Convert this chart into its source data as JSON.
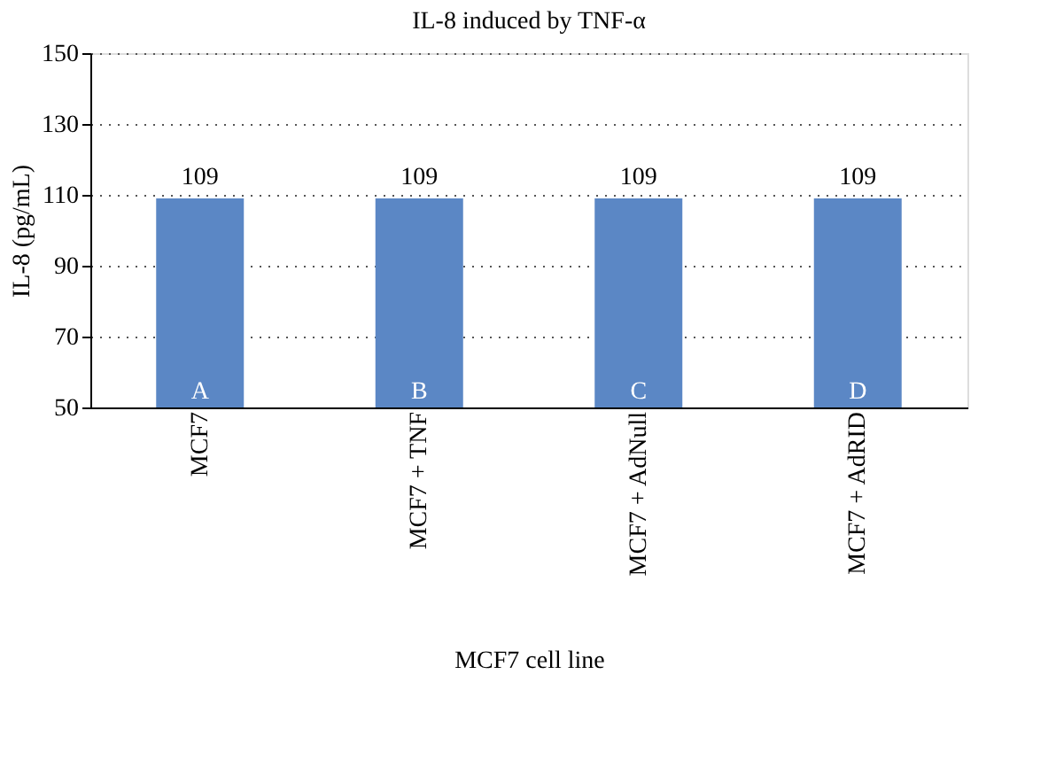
{
  "chart_data": {
    "type": "bar",
    "title": "IL-8 induced by TNF-α",
    "xlabel": "MCF7 cell line",
    "ylabel": "IL-8 (pg/mL)",
    "categories": [
      "MCF7",
      "MCF7 + TNF",
      "MCF7 + AdNull",
      "MCF7 + AdRID"
    ],
    "values": [
      109,
      109,
      109,
      109
    ],
    "color": "#5b87c5",
    "data_labels": true,
    "ylim": [
      50,
      150
    ],
    "yticks": [
      50,
      70,
      90,
      110,
      130,
      150
    ],
    "grid": "y",
    "annotations": [
      "A",
      "B",
      "C",
      "D"
    ]
  }
}
